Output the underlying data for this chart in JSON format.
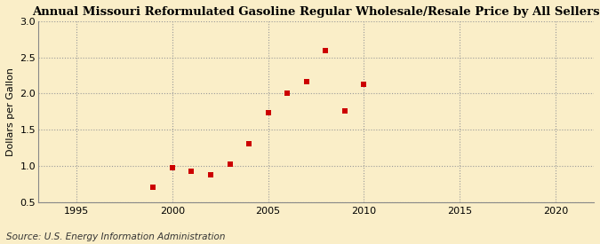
{
  "title": "Annual Missouri Reformulated Gasoline Regular Wholesale/Resale Price by All Sellers",
  "ylabel": "Dollars per Gallon",
  "source": "Source: U.S. Energy Information Administration",
  "years": [
    1999,
    2000,
    2001,
    2002,
    2003,
    2004,
    2005,
    2006,
    2007,
    2008,
    2009,
    2010
  ],
  "values": [
    0.7,
    0.98,
    0.93,
    0.88,
    1.03,
    1.31,
    1.74,
    2.01,
    2.16,
    2.59,
    1.76,
    2.13
  ],
  "xlim": [
    1993,
    2022
  ],
  "ylim": [
    0.5,
    3.0
  ],
  "xticks": [
    1995,
    2000,
    2005,
    2010,
    2015,
    2020
  ],
  "yticks": [
    0.5,
    1.0,
    1.5,
    2.0,
    2.5,
    3.0
  ],
  "marker_color": "#cc0000",
  "marker_size": 4,
  "bg_color": "#faeec8",
  "grid_color": "#999999",
  "title_fontsize": 9.5,
  "label_fontsize": 8,
  "tick_fontsize": 8,
  "source_fontsize": 7.5
}
